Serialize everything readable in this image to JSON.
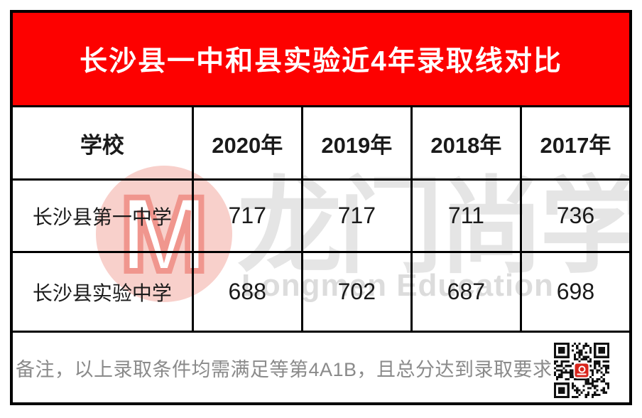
{
  "banner": {
    "title": "长沙县一中和县实验近4年录取线对比"
  },
  "table": {
    "school_column_header": "学校",
    "year_headers": [
      "2020年",
      "2019年",
      "2018年",
      "2017年"
    ]
  },
  "chart_data": {
    "type": "table",
    "title": "长沙县一中和县实验近4年录取线对比",
    "categories": [
      "2020年",
      "2019年",
      "2018年",
      "2017年"
    ],
    "series": [
      {
        "name": "长沙县第一中学",
        "values": [
          "717",
          "717",
          "711",
          "736"
        ]
      },
      {
        "name": "长沙县实验中学",
        "values": [
          "688",
          "702",
          "687",
          "698"
        ]
      }
    ],
    "row_header_label": "学校",
    "note": "备注，以上录取条件均需满足等第4A1B，且总分达到录取要求"
  },
  "footer": {
    "note": "备注，以上录取条件均需满足等第4A1B，且总分达到录取要求"
  },
  "watermark": {
    "cn": "龙门尚学",
    "en": "Longmen Education",
    "logo_letter": "M"
  },
  "colors": {
    "banner_red": "#fd0100",
    "border_black": "#000000",
    "note_gray": "#8a8a8a",
    "qr_logo_red": "#d8251c",
    "watermark_pink": "#f8d0cb",
    "watermark_gray": "#e5e5e5"
  }
}
